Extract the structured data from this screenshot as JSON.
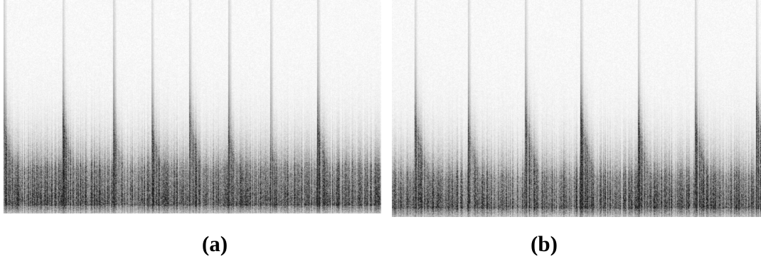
{
  "panels": [
    {
      "label": "(a)",
      "bursts": 8,
      "floor_level": 0.78,
      "ink": "#1a1a1a"
    },
    {
      "label": "(b)",
      "bursts": 7,
      "floor_level": 0.8,
      "ink": "#1a1a1a"
    }
  ]
}
